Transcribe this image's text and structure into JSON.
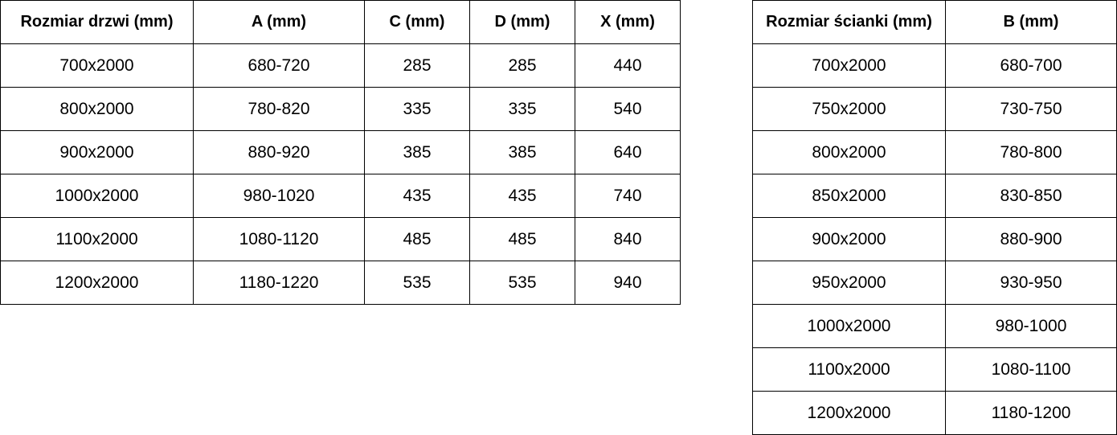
{
  "doors_table": {
    "headers": [
      "Rozmiar drzwi (mm)",
      "A (mm)",
      "C (mm)",
      "D (mm)",
      "X (mm)"
    ],
    "rows": [
      [
        "700x2000",
        "680-720",
        "285",
        "285",
        "440"
      ],
      [
        "800x2000",
        "780-820",
        "335",
        "335",
        "540"
      ],
      [
        "900x2000",
        "880-920",
        "385",
        "385",
        "640"
      ],
      [
        "1000x2000",
        "980-1020",
        "435",
        "435",
        "740"
      ],
      [
        "1100x2000",
        "1080-1120",
        "485",
        "485",
        "840"
      ],
      [
        "1200x2000",
        "1180-1220",
        "535",
        "535",
        "940"
      ]
    ]
  },
  "wall_table": {
    "headers": [
      "Rozmiar ścianki (mm)",
      "B (mm)"
    ],
    "rows": [
      [
        "700x2000",
        "680-700"
      ],
      [
        "750x2000",
        "730-750"
      ],
      [
        "800x2000",
        "780-800"
      ],
      [
        "850x2000",
        "830-850"
      ],
      [
        "900x2000",
        "880-900"
      ],
      [
        "950x2000",
        "930-950"
      ],
      [
        "1000x2000",
        "980-1000"
      ],
      [
        "1100x2000",
        "1080-1100"
      ],
      [
        "1200x2000",
        "1180-1200"
      ]
    ]
  }
}
